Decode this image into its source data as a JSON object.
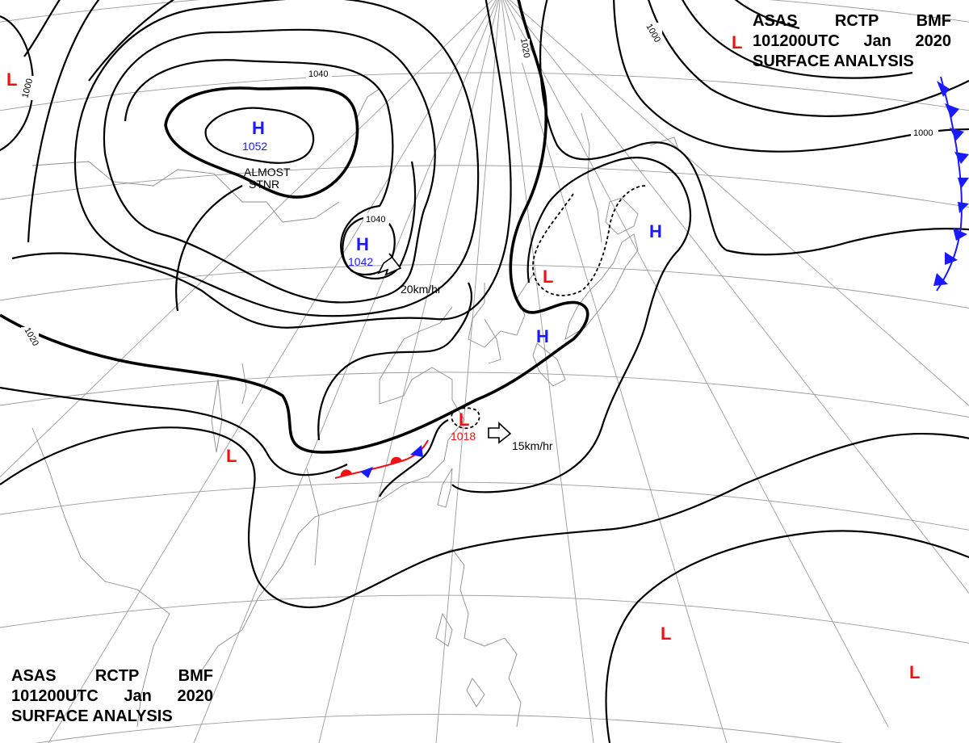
{
  "header_top_right": {
    "line1": [
      "ASAS",
      "RCTP",
      "BMF"
    ],
    "line2": [
      "101200UTC",
      "Jan",
      "2020"
    ],
    "line3": "SURFACE ANALYSIS"
  },
  "header_bottom_left": {
    "line1": [
      "ASAS",
      "RCTP",
      "BMF"
    ],
    "line2": [
      "101200UTC",
      "Jan",
      "2020"
    ],
    "line3": "SURFACE ANALYSIS"
  },
  "pressure_centers": [
    {
      "type": "H",
      "value": "1052"
    },
    {
      "type": "H",
      "value": "1042"
    },
    {
      "type": "H",
      "value": ""
    },
    {
      "type": "H",
      "value": ""
    },
    {
      "type": "L",
      "value": "1018"
    },
    {
      "type": "L",
      "value": ""
    },
    {
      "type": "L",
      "value": ""
    },
    {
      "type": "L",
      "value": ""
    },
    {
      "type": "L",
      "value": ""
    },
    {
      "type": "L",
      "value": ""
    },
    {
      "type": "L",
      "value": ""
    }
  ],
  "isobar_labels": [
    "1040",
    "1040",
    "1020",
    "1000",
    "1000",
    "1020",
    "1000"
  ],
  "annotations": {
    "stationary_line1": "ALMOST",
    "stationary_line2": "STNR",
    "motion_north": "20km/hr",
    "motion_south": "15km/hr"
  },
  "colors": {
    "high": "#1a1aff",
    "low": "#ee1111",
    "isobar": "#000000",
    "grid": "#9a9a9a",
    "coast": "#8c8c8c"
  }
}
